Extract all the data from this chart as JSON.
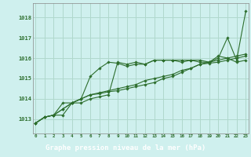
{
  "title": "Graphe pression niveau de la mer (hPa)",
  "hours": [
    0,
    1,
    2,
    3,
    4,
    5,
    6,
    7,
    8,
    9,
    10,
    11,
    12,
    13,
    14,
    15,
    16,
    17,
    18,
    19,
    20,
    21,
    22,
    23
  ],
  "yticks": [
    1013,
    1014,
    1015,
    1016,
    1017,
    1018
  ],
  "ylim": [
    1012.3,
    1018.7
  ],
  "xlim": [
    -0.3,
    23.3
  ],
  "bg_color": "#cff0ee",
  "grid_color": "#b0d8cc",
  "line_color": "#2d6e2d",
  "title_color": "#ffffff",
  "title_bg": "#4a7c4a",
  "tick_color": "#2d6e2d",
  "series": [
    [
      1012.8,
      1013.1,
      1013.2,
      1013.2,
      1013.8,
      1013.8,
      1014.0,
      1014.1,
      1014.2,
      1015.8,
      1015.7,
      1015.8,
      1015.7,
      1015.9,
      1015.9,
      1015.9,
      1015.8,
      1015.9,
      1015.8,
      1015.8,
      1016.0,
      1017.0,
      1015.9,
      1018.3
    ],
    [
      1012.8,
      1013.1,
      1013.2,
      1013.8,
      1013.8,
      1014.0,
      1015.1,
      1015.5,
      1015.8,
      1015.75,
      1015.6,
      1015.7,
      1015.7,
      1015.9,
      1015.9,
      1015.9,
      1015.9,
      1015.9,
      1015.9,
      1015.8,
      1016.1,
      1016.0,
      1015.8,
      1015.9
    ],
    [
      1012.8,
      1013.1,
      1013.2,
      1013.5,
      1013.8,
      1014.0,
      1014.2,
      1014.25,
      1014.35,
      1014.4,
      1014.5,
      1014.6,
      1014.7,
      1014.8,
      1015.0,
      1015.1,
      1015.3,
      1015.5,
      1015.7,
      1015.75,
      1015.8,
      1015.9,
      1016.0,
      1016.1
    ],
    [
      1012.8,
      1013.1,
      1013.2,
      1013.5,
      1013.8,
      1014.0,
      1014.2,
      1014.3,
      1014.4,
      1014.5,
      1014.6,
      1014.7,
      1014.9,
      1015.0,
      1015.1,
      1015.2,
      1015.4,
      1015.5,
      1015.7,
      1015.8,
      1015.9,
      1016.0,
      1016.1,
      1016.2
    ]
  ]
}
